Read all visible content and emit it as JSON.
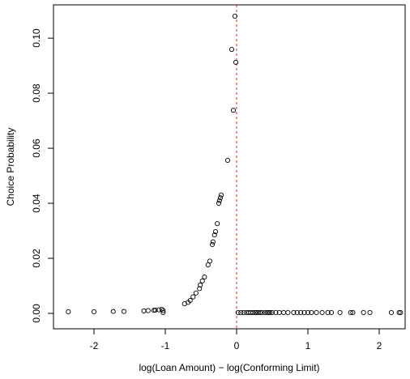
{
  "chart_data": {
    "type": "scatter",
    "x_label": "log(Loan Amount) − log(Conforming Limit)",
    "y_label": "Choice Probability",
    "color": "#000000",
    "vline": {
      "value": 0,
      "color": "#e0201b"
    },
    "xlim": [
      -2.568,
      2.364
    ],
    "ylim": [
      -0.0056,
      0.1121
    ],
    "xticks": [
      -2,
      -1,
      0,
      1,
      2
    ],
    "yticks": [
      {
        "value": 0,
        "label": "0.00"
      },
      0.02,
      0.04,
      0.06,
      0.08,
      {
        "value": 0.1,
        "label": "0.10"
      }
    ],
    "x": [
      -2.36,
      -2.0,
      -1.73,
      -1.58,
      -1.3,
      -1.24,
      -1.16,
      -1.14,
      -1.09,
      -1.05,
      -1.03,
      -1.03,
      -0.73,
      -0.68,
      -0.65,
      -0.61,
      -0.57,
      -0.52,
      -0.51,
      -0.48,
      -0.45,
      -0.4,
      -0.375,
      -0.34,
      -0.33,
      -0.31,
      -0.295,
      -0.27,
      -0.25,
      -0.24,
      -0.227,
      -0.216,
      -0.125,
      -0.045,
      -0.068,
      -0.023,
      -0.011,
      0.02,
      0.06,
      0.1,
      0.14,
      0.17,
      0.2,
      0.23,
      0.26,
      0.28,
      0.3,
      0.33,
      0.36,
      0.4,
      0.43,
      0.45,
      0.47,
      0.5,
      0.55,
      0.6,
      0.66,
      0.72,
      0.8,
      0.85,
      0.9,
      0.95,
      1.0,
      1.05,
      1.12,
      1.2,
      1.28,
      1.33,
      1.45,
      1.6,
      1.63,
      1.78,
      1.87,
      2.17,
      2.28,
      2.3
    ],
    "y": [
      0.0006,
      0.0006,
      0.0007,
      0.0007,
      0.0009,
      0.001,
      0.0011,
      0.0012,
      0.0013,
      0.0015,
      0.001,
      0.0003,
      0.0035,
      0.004,
      0.0047,
      0.006,
      0.0074,
      0.009,
      0.0103,
      0.0118,
      0.0132,
      0.0176,
      0.019,
      0.025,
      0.026,
      0.0285,
      0.0297,
      0.0326,
      0.04,
      0.041,
      0.042,
      0.043,
      0.0556,
      0.0738,
      0.0959,
      0.108,
      0.0912,
      0.0003,
      0.0003,
      0.0003,
      0.0003,
      0.0003,
      0.0003,
      0.0003,
      0.0003,
      0.0003,
      0.0003,
      0.0003,
      0.0003,
      0.0003,
      0.0003,
      0.0003,
      0.0003,
      0.0003,
      0.0003,
      0.0003,
      0.0003,
      0.0003,
      0.0003,
      0.0003,
      0.0003,
      0.0003,
      0.0003,
      0.0003,
      0.0003,
      0.0003,
      0.0003,
      0.0003,
      0.0003,
      0.0003,
      0.0003,
      0.0003,
      0.0003,
      0.0003,
      0.0003,
      0.0003
    ]
  }
}
